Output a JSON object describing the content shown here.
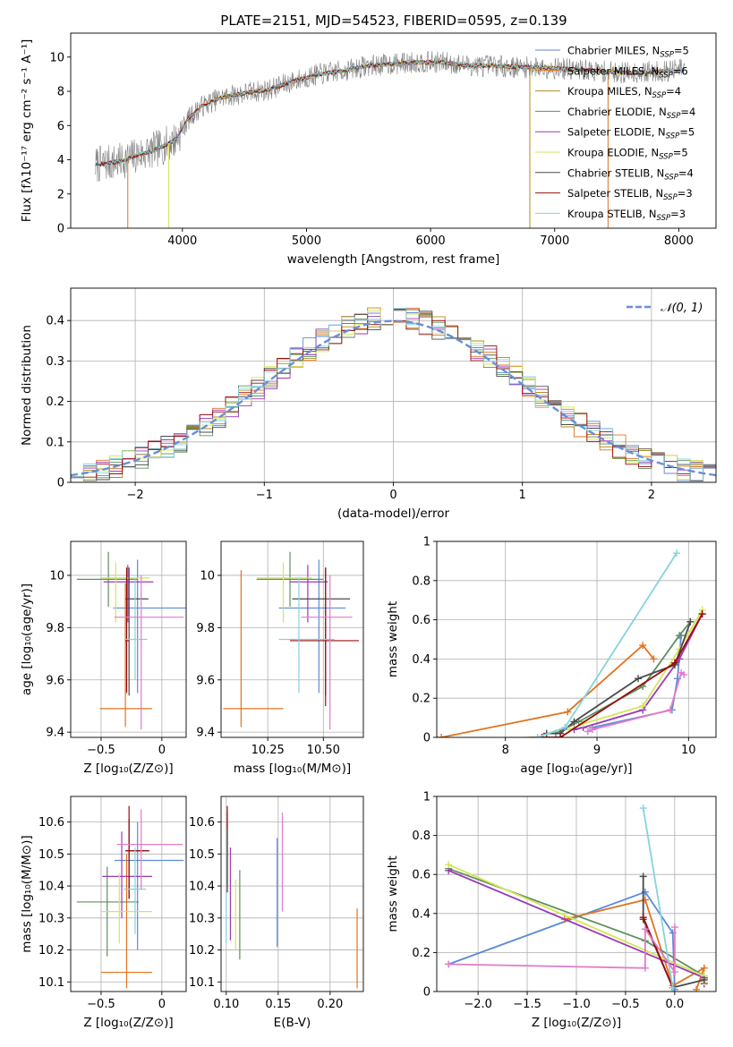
{
  "figure": {
    "title": "PLATE=2151, MJD=54523, FIBERID=0595, z=0.139"
  },
  "colors": {
    "Chabrier MILES": "#5b8bd8",
    "Salpeter MILES": "#e0741f",
    "Kroupa MILES": "#b08d1a",
    "Chabrier ELODIE": "#5f8f5f",
    "Salpeter ELODIE": "#9b39b8",
    "Kroupa ELODIE": "#d4e655",
    "Chabrier STELIB": "#4a4a4a",
    "Salpeter STELIB": "#9b0d0d",
    "Kroupa STELIB": "#86d3dc",
    "pink": "#e27bc7",
    "data": "#808080",
    "normal": "#6a8fd5"
  },
  "chart_data": [
    {
      "id": "spectrum",
      "type": "line",
      "xlabel": "wavelength [Angstrom, rest frame]",
      "ylabel": "Flux [fλ10⁻¹⁷ erg cm⁻² s⁻¹ A⁻¹]",
      "xlim": [
        3100,
        8300
      ],
      "ylim": [
        0,
        11.4
      ],
      "xticks": [
        4000,
        5000,
        6000,
        7000,
        8000
      ],
      "yticks": [
        0,
        2,
        4,
        6,
        8,
        10
      ],
      "continuum": {
        "x": [
          3300,
          3500,
          3650,
          3750,
          3850,
          3950,
          4050,
          4150,
          4300,
          4500,
          4700,
          4900,
          5100,
          5300,
          5500,
          5700,
          5900,
          6100,
          6300,
          6500,
          6700,
          6900,
          7100,
          7300,
          7500,
          7700,
          7900,
          8050
        ],
        "y": [
          3.7,
          3.9,
          4.3,
          4.5,
          4.8,
          5.2,
          6.4,
          7.1,
          7.6,
          7.9,
          8.1,
          8.6,
          9.0,
          9.2,
          9.5,
          9.6,
          9.7,
          9.7,
          9.5,
          9.5,
          9.4,
          9.4,
          9.3,
          9.2,
          9.1,
          9.1,
          9.2,
          9.3
        ]
      },
      "legend": [
        "Chabrier MILES, N_SSP=5",
        "Salpeter MILES, N_SSP=6",
        "Kroupa MILES, N_SSP=4",
        "Chabrier ELODIE, N_SSP=4",
        "Salpeter ELODIE, N_SSP=5",
        "Kroupa ELODIE, N_SSP=5",
        "Chabrier STELIB, N_SSP=4",
        "Salpeter STELIB, N_SSP=3",
        "Kroupa STELIB, N_SSP=3"
      ],
      "legend_position": "right"
    },
    {
      "id": "residuals",
      "type": "line",
      "xlabel": "(data-model)/error",
      "ylabel": "Normed distribution",
      "xlim": [
        -2.5,
        2.5
      ],
      "ylim": [
        0,
        0.48
      ],
      "xticks": [
        -2,
        -1,
        0,
        1,
        2
      ],
      "yticks": [
        0.0,
        0.1,
        0.2,
        0.3,
        0.4
      ],
      "grid": true,
      "bin_width": 0.1,
      "legend": "𝒩(0, 1)",
      "legend_position": "top-right"
    },
    {
      "id": "age-vs-Z",
      "type": "scatter",
      "xlabel": "Z [log₁₀(Z/Z⊙)]",
      "ylabel": "age  [log₁₀(age/yr)]",
      "xlim": [
        -0.75,
        0.2
      ],
      "ylim": [
        9.38,
        10.13
      ],
      "xticks": [
        -0.5,
        0.0
      ],
      "yticks": [
        9.4,
        9.6,
        9.8,
        10.0
      ],
      "grid": true,
      "points": [
        {
          "c": "Chabrier MILES",
          "x": -0.2,
          "xe": [
            -0.4,
            0.2
          ],
          "y": 9.875,
          "ye": [
            9.55,
            10.06
          ]
        },
        {
          "c": "Salpeter MILES",
          "x": -0.3,
          "xe": [
            -0.51,
            -0.08
          ],
          "y": 9.49,
          "ye": [
            9.42,
            9.97
          ]
        },
        {
          "c": "Chabrier ELODIE",
          "x": -0.44,
          "xe": [
            -0.7,
            -0.2
          ],
          "y": 9.985,
          "ye": [
            9.88,
            10.09
          ]
        },
        {
          "c": "Salpeter ELODIE",
          "x": -0.28,
          "xe": [
            -0.48,
            -0.07
          ],
          "y": 9.975,
          "ye": [
            9.82,
            10.04
          ]
        },
        {
          "c": "Kroupa ELODIE",
          "x": -0.38,
          "xe": [
            -0.5,
            -0.1
          ],
          "y": 9.99,
          "ye": [
            9.82,
            10.05
          ]
        },
        {
          "c": "Chabrier STELIB",
          "x": -0.27,
          "xe": [
            -0.3,
            -0.11
          ],
          "y": 9.91,
          "ye": [
            9.54,
            10.03
          ]
        },
        {
          "c": "Salpeter STELIB",
          "x": -0.29,
          "xe": [
            -0.3,
            -0.27
          ],
          "y": 9.75,
          "ye": [
            9.55,
            10.03
          ]
        },
        {
          "c": "Kroupa STELIB",
          "x": -0.22,
          "xe": [
            -0.31,
            -0.12
          ],
          "y": 9.755,
          "ye": [
            9.6,
            9.99
          ]
        },
        {
          "c": "pink",
          "x": -0.17,
          "xe": [
            -0.39,
            0.18
          ],
          "y": 9.84,
          "ye": [
            9.41,
            10.0
          ]
        }
      ]
    },
    {
      "id": "age-vs-mass",
      "type": "scatter",
      "xlabel": "mass [log₁₀(M/M⊙)]",
      "ylabel": "",
      "xlim": [
        10.04,
        10.68
      ],
      "ylim": [
        9.38,
        10.13
      ],
      "xticks": [
        10.25,
        10.5
      ],
      "xticklabels": [
        "10.25",
        "10.50"
      ],
      "yticks": [
        9.4,
        9.6,
        9.8,
        10.0
      ],
      "grid": true,
      "points": [
        {
          "c": "Chabrier MILES",
          "x": 10.48,
          "xe": [
            10.3,
            10.6
          ],
          "y": 9.875,
          "ye": [
            9.55,
            10.06
          ]
        },
        {
          "c": "Salpeter MILES",
          "x": 10.13,
          "xe": [
            10.05,
            10.32
          ],
          "y": 9.49,
          "ye": [
            9.42,
            10.02
          ]
        },
        {
          "c": "Chabrier ELODIE",
          "x": 10.35,
          "xe": [
            10.2,
            10.5
          ],
          "y": 9.985,
          "ye": [
            9.88,
            10.09
          ]
        },
        {
          "c": "Salpeter ELODIE",
          "x": 10.43,
          "xe": [
            10.35,
            10.52
          ],
          "y": 9.975,
          "ye": [
            9.82,
            10.04
          ]
        },
        {
          "c": "Kroupa ELODIE",
          "x": 10.32,
          "xe": [
            10.2,
            10.45
          ],
          "y": 9.99,
          "ye": [
            9.82,
            10.05
          ]
        },
        {
          "c": "Chabrier STELIB",
          "x": 10.51,
          "xe": [
            10.36,
            10.62
          ],
          "y": 9.91,
          "ye": [
            9.54,
            10.03
          ]
        },
        {
          "c": "Salpeter STELIB",
          "x": 10.51,
          "xe": [
            10.35,
            10.66
          ],
          "y": 9.75,
          "ye": [
            9.5,
            10.03
          ]
        },
        {
          "c": "Kroupa STELIB",
          "x": 10.39,
          "xe": [
            10.3,
            10.55
          ],
          "y": 9.755,
          "ye": [
            9.55,
            9.99
          ]
        },
        {
          "c": "pink",
          "x": 10.53,
          "xe": [
            10.4,
            10.63
          ],
          "y": 9.84,
          "ye": [
            9.41,
            10.0
          ]
        }
      ]
    },
    {
      "id": "mass-weight-vs-age",
      "type": "line",
      "xlabel": "age  [log₁₀(age/yr)]",
      "ylabel": "mass weight",
      "xlim": [
        7.25,
        10.3
      ],
      "ylim": [
        0,
        1.0
      ],
      "xticks": [
        8,
        9,
        10
      ],
      "yticks": [
        0.0,
        0.2,
        0.4,
        0.6,
        0.8,
        1.0
      ],
      "grid": true,
      "series": [
        {
          "c": "Chabrier MILES",
          "x": [
            8.95,
            9.82,
            9.88,
            9.92
          ],
          "y": [
            0.05,
            0.14,
            0.3,
            0.52
          ]
        },
        {
          "c": "Salpeter MILES",
          "x": [
            7.3,
            8.68,
            9.5,
            9.62
          ],
          "y": [
            0.0,
            0.13,
            0.47,
            0.4
          ]
        },
        {
          "c": "Chabrier ELODIE",
          "x": [
            8.55,
            8.8,
            9.5,
            9.9,
            10.02
          ],
          "y": [
            0.02,
            0.08,
            0.26,
            0.52,
            0.59
          ]
        },
        {
          "c": "Salpeter ELODIE",
          "x": [
            8.75,
            8.85,
            9.5,
            9.9,
            10.15
          ],
          "y": [
            0.04,
            0.05,
            0.14,
            0.4,
            0.63
          ]
        },
        {
          "c": "Kroupa ELODIE",
          "x": [
            8.7,
            8.85,
            9.5,
            9.9,
            10.15
          ],
          "y": [
            0.04,
            0.07,
            0.16,
            0.45,
            0.65
          ]
        },
        {
          "c": "Chabrier STELIB",
          "x": [
            8.45,
            8.6,
            8.75,
            9.45,
            9.85,
            10.02
          ],
          "y": [
            0.02,
            0.02,
            0.08,
            0.3,
            0.37,
            0.59
          ]
        },
        {
          "c": "Salpeter STELIB",
          "x": [
            7.25,
            8.4,
            8.6,
            9.85,
            10.15
          ],
          "y": [
            -0.01,
            0.0,
            0.0,
            0.38,
            0.63
          ]
        },
        {
          "c": "Kroupa STELIB",
          "x": [
            8.35,
            8.65,
            9.87
          ],
          "y": [
            0.0,
            0.05,
            0.94
          ]
        },
        {
          "c": "pink",
          "x": [
            8.9,
            8.95,
            9.8,
            9.92,
            9.95
          ],
          "y": [
            0.03,
            0.04,
            0.14,
            0.33,
            0.32
          ]
        }
      ]
    },
    {
      "id": "mass-vs-Z",
      "type": "scatter",
      "xlabel": "Z [log₁₀(Z/Z⊙)]",
      "ylabel": "mass [log₁₀(M/M⊙)]",
      "xlim": [
        -0.75,
        0.2
      ],
      "ylim": [
        10.07,
        10.68
      ],
      "xticks": [
        -0.5,
        0.0
      ],
      "yticks": [
        10.1,
        10.2,
        10.3,
        10.4,
        10.5,
        10.6
      ],
      "grid": true,
      "points": [
        {
          "c": "Chabrier MILES",
          "x": -0.2,
          "xe": [
            -0.39,
            0.18
          ],
          "y": 10.48,
          "ye": [
            10.2,
            10.6
          ]
        },
        {
          "c": "Salpeter MILES",
          "x": -0.29,
          "xe": [
            -0.5,
            -0.08
          ],
          "y": 10.13,
          "ye": [
            10.08,
            10.5
          ]
        },
        {
          "c": "Chabrier ELODIE",
          "x": -0.45,
          "xe": [
            -0.7,
            -0.19
          ],
          "y": 10.35,
          "ye": [
            10.18,
            10.46
          ]
        },
        {
          "c": "Salpeter ELODIE",
          "x": -0.33,
          "xe": [
            -0.49,
            -0.08
          ],
          "y": 10.43,
          "ye": [
            10.3,
            10.57
          ]
        },
        {
          "c": "Kroupa ELODIE",
          "x": -0.35,
          "xe": [
            -0.5,
            -0.08
          ],
          "y": 10.32,
          "ye": [
            10.22,
            10.44
          ]
        },
        {
          "c": "Chabrier STELIB",
          "x": -0.27,
          "xe": [
            -0.3,
            -0.1
          ],
          "y": 10.51,
          "ye": [
            10.36,
            10.61
          ]
        },
        {
          "c": "Salpeter STELIB",
          "x": -0.27,
          "xe": [
            -0.3,
            -0.11
          ],
          "y": 10.51,
          "ye": [
            10.36,
            10.65
          ]
        },
        {
          "c": "Kroupa STELIB",
          "x": -0.22,
          "xe": [
            -0.31,
            -0.13
          ],
          "y": 10.39,
          "ye": [
            10.25,
            10.52
          ]
        },
        {
          "c": "pink",
          "x": -0.17,
          "xe": [
            -0.37,
            0.17
          ],
          "y": 10.53,
          "ye": [
            10.39,
            10.64
          ]
        }
      ]
    },
    {
      "id": "mass-vs-EBV",
      "type": "scatter",
      "xlabel": "E(B-V)",
      "ylabel": "",
      "xlim": [
        0.095,
        0.232
      ],
      "ylim": [
        10.07,
        10.68
      ],
      "xticks": [
        0.1,
        0.15,
        0.2
      ],
      "xticklabels": [
        "0.10",
        "0.15",
        "0.20"
      ],
      "yticks": [
        10.1,
        10.2,
        10.3,
        10.4,
        10.5,
        10.6
      ],
      "grid": true,
      "points": [
        {
          "c": "Chabrier MILES",
          "x": 0.149,
          "y": 10.38,
          "ye": [
            10.21,
            10.55
          ]
        },
        {
          "c": "Salpeter MILES",
          "x": 0.226,
          "y": 10.2,
          "ye": [
            10.08,
            10.33
          ]
        },
        {
          "c": "Chabrier ELODIE",
          "x": 0.113,
          "y": 10.28,
          "ye": [
            10.17,
            10.45
          ]
        },
        {
          "c": "Salpeter ELODIE",
          "x": 0.104,
          "y": 10.37,
          "ye": [
            10.23,
            10.52
          ]
        },
        {
          "c": "Kroupa ELODIE",
          "x": 0.109,
          "y": 10.31,
          "ye": [
            10.2,
            10.42
          ]
        },
        {
          "c": "Chabrier STELIB",
          "x": 0.101,
          "y": 10.52,
          "ye": [
            10.4,
            10.63
          ]
        },
        {
          "c": "Salpeter STELIB",
          "x": 0.101,
          "y": 10.52,
          "ye": [
            10.38,
            10.65
          ]
        },
        {
          "c": "Kroupa STELIB",
          "x": 0.1,
          "y": 10.42,
          "ye": [
            10.22,
            10.58
          ]
        },
        {
          "c": "pink",
          "x": 0.154,
          "y": 10.47,
          "ye": [
            10.32,
            10.63
          ]
        }
      ]
    },
    {
      "id": "mass-weight-vs-Z",
      "type": "line",
      "xlabel": "Z [log₁₀(Z/Z⊙)]",
      "ylabel": "mass weight",
      "xlim": [
        -2.42,
        0.42
      ],
      "ylim": [
        0,
        1.0
      ],
      "xticks": [
        -2.0,
        -1.5,
        -1.0,
        -0.5,
        0.0
      ],
      "xticklabels": [
        "−2.0",
        "−1.5",
        "−1.0",
        "−0.5",
        "0.0"
      ],
      "yticks": [
        0.0,
        0.2,
        0.4,
        0.6,
        0.8,
        1.0
      ],
      "grid": true,
      "series": [
        {
          "c": "Chabrier MILES",
          "x": [
            -2.3,
            -0.3,
            -0.02,
            0.0
          ],
          "y": [
            0.14,
            0.51,
            0.3,
            0.01
          ]
        },
        {
          "c": "Salpeter MILES",
          "x": [
            -1.12,
            -0.3,
            -0.02,
            0.3,
            0.22
          ],
          "y": [
            0.37,
            0.47,
            0.03,
            0.12,
            0.01
          ]
        },
        {
          "c": "Chabrier ELODIE",
          "x": [
            -2.3,
            -0.3,
            0.3,
            0.3
          ],
          "y": [
            0.63,
            0.26,
            0.08,
            0.04
          ]
        },
        {
          "c": "Salpeter ELODIE",
          "x": [
            -2.3,
            0.3,
            0.3
          ],
          "y": [
            0.62,
            0.07,
            0.04
          ]
        },
        {
          "c": "Kroupa ELODIE",
          "x": [
            -2.3,
            0.3,
            0.3
          ],
          "y": [
            0.65,
            0.08,
            0.05
          ]
        },
        {
          "c": "Chabrier STELIB",
          "x": [
            -0.32,
            -0.32,
            -0.02,
            0.3
          ],
          "y": [
            0.59,
            0.37,
            0.02,
            0.06
          ]
        },
        {
          "c": "Salpeter STELIB",
          "x": [
            -0.32,
            -0.02
          ],
          "y": [
            0.38,
            0.02
          ]
        },
        {
          "c": "Kroupa STELIB",
          "x": [
            -0.32,
            -0.02
          ],
          "y": [
            0.94,
            0.02
          ]
        },
        {
          "c": "pink",
          "x": [
            -2.3,
            -0.3,
            -0.3,
            0.0,
            0.0
          ],
          "y": [
            0.14,
            0.12,
            0.32,
            0.1,
            0.33
          ]
        }
      ]
    }
  ]
}
